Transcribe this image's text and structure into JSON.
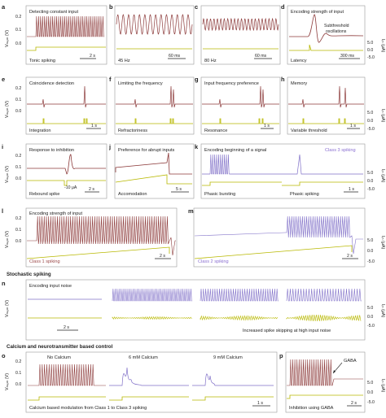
{
  "colors": {
    "voltage": "#8c3a3a",
    "voltage_purple": "#8070c8",
    "current": "#b8b800",
    "frame": "#999999",
    "label_purple": "#8a6fd0",
    "label_red": "#9c4a4a"
  },
  "axis": {
    "vmem": "Vₘₑₘ (V)",
    "vmem_ticks": [
      "0.2",
      "0.1",
      "0.0"
    ],
    "iin": "Iᵢₙ (μA)",
    "iin_ticks": [
      "5.0",
      "0.0",
      "-5.0"
    ]
  },
  "row1": [
    {
      "letter": "a",
      "title": "Detecting constant input",
      "caption": "Tonic spiking",
      "scale": "2 s"
    },
    {
      "letter": "b",
      "title": "",
      "caption": "45 Hz",
      "scale": "60 ms"
    },
    {
      "letter": "c",
      "title": "",
      "caption": "80 Hz",
      "scale": "60 ms"
    },
    {
      "letter": "d",
      "title": "Encoding strength of input",
      "caption": "Latency",
      "scale": "300 ms",
      "note": "Subthreshold\noscillations"
    }
  ],
  "row2": [
    {
      "letter": "e",
      "title": "Coincidence detection",
      "caption": "Integration",
      "scale": "1 s"
    },
    {
      "letter": "f",
      "title": "Limiting the frequency",
      "caption": "Refractoriness",
      "scale": ""
    },
    {
      "letter": "g",
      "title": "Input frequency preference",
      "caption": "Resonance",
      "scale": "1 s"
    },
    {
      "letter": "h",
      "title": "Memory",
      "caption": "Variable threshold",
      "scale": "1 s"
    }
  ],
  "row3": [
    {
      "letter": "i",
      "title": "Response to inhibition",
      "caption": "Rebound spike",
      "scale": "2 s",
      "extra": "-10 μA"
    },
    {
      "letter": "j",
      "title": "Preference for abrupt inputs",
      "caption": "Accomodation",
      "scale": "5 s"
    },
    {
      "letter": "k",
      "title": "Encoding beginning of a signal",
      "caption": "Phasic bursting",
      "caption2": "Phasic spiking",
      "scale": "1 s",
      "class_label": "Class 3 spiking"
    }
  ],
  "row4": [
    {
      "letter": "l",
      "title": "Encoding strength of input",
      "caption": "Class 1 spiking",
      "scale": "2 s"
    },
    {
      "letter": "m",
      "title": "",
      "caption": "Class 2 spiking",
      "scale": "2 s"
    }
  ],
  "stochastic": {
    "header": "Stochastic spiking",
    "letter": "n",
    "title": "Encoding input noise",
    "scale": "2 s",
    "caption": "Increased spike skipping at high input noise"
  },
  "calcium": {
    "header": "Calcium and neurotransmitter based control",
    "letter": "o",
    "labels": [
      "No Calcium",
      "6 mM Calcium",
      "9 mM Calcium"
    ],
    "caption": "Calcium based modulation from Class 1 to Class 3 spiking",
    "scale": "1 s"
  },
  "gaba": {
    "letter": "p",
    "label": "GABA",
    "caption": "Inhibition using GABA",
    "scale": "2 s"
  }
}
